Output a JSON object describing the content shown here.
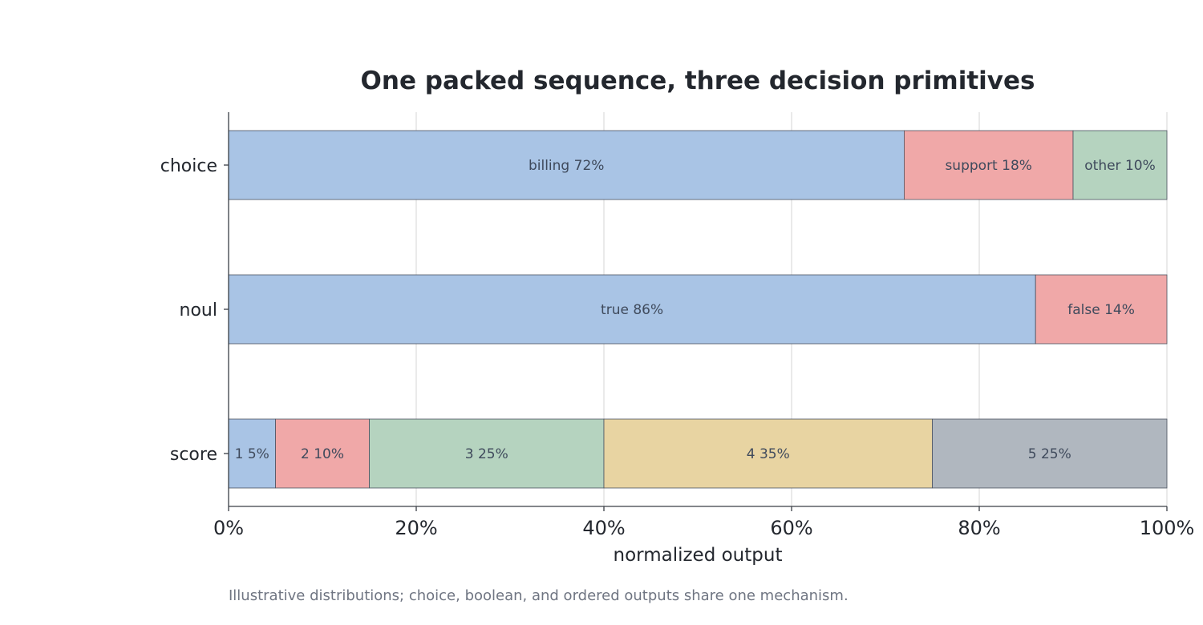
{
  "chart_data": {
    "type": "bar",
    "orientation": "horizontal",
    "stacked": true,
    "title": "One packed sequence, three decision primitives",
    "xlabel": "normalized output",
    "ylabel": "",
    "xlim": [
      0,
      100
    ],
    "x_tick_labels": [
      "0%",
      "20%",
      "40%",
      "60%",
      "80%",
      "100%"
    ],
    "x_ticks": [
      0,
      20,
      40,
      60,
      80,
      100
    ],
    "grid": true,
    "categories": [
      "choice",
      "noul",
      "score"
    ],
    "rows": [
      {
        "category": "choice",
        "segments": [
          {
            "label": "billing 72%",
            "value": 72,
            "color": "#a9c4e5"
          },
          {
            "label": "support 18%",
            "value": 18,
            "color": "#f0a8a8"
          },
          {
            "label": "other 10%",
            "value": 10,
            "color": "#b5d3bf"
          }
        ]
      },
      {
        "category": "noul",
        "segments": [
          {
            "label": "true 86%",
            "value": 86,
            "color": "#a9c4e5"
          },
          {
            "label": "false 14%",
            "value": 14,
            "color": "#f0a8a8"
          }
        ]
      },
      {
        "category": "score",
        "segments": [
          {
            "label": "1 5%",
            "value": 5,
            "color": "#a9c4e5"
          },
          {
            "label": "2 10%",
            "value": 10,
            "color": "#f0a8a8"
          },
          {
            "label": "3 25%",
            "value": 25,
            "color": "#b5d3bf"
          },
          {
            "label": "4 35%",
            "value": 35,
            "color": "#e8d4a2"
          },
          {
            "label": "5 25%",
            "value": 25,
            "color": "#b0b7bf"
          }
        ]
      }
    ],
    "caption": "Illustrative distributions; choice, boolean, and ordered outputs share one mechanism."
  }
}
